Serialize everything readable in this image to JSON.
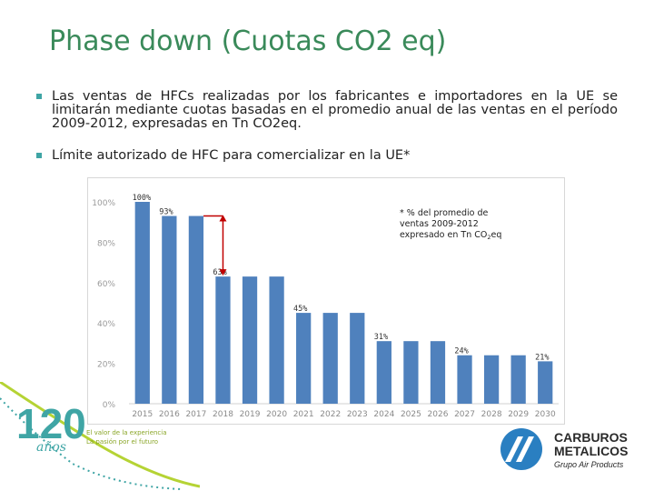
{
  "slide": {
    "title": "Phase down (Cuotas CO2 eq)",
    "bullets": [
      "Las ventas de HFCs realizadas por los fabricantes e importadores en la UE se limitarán mediante cuotas basadas en el promedio anual de las ventas en el período 2009-2012, expresadas en Tn CO2eq.",
      "Límite autorizado de HFC para comercializar en la UE*"
    ]
  },
  "chart_data": {
    "type": "bar",
    "categories": [
      "2015",
      "2016",
      "2017",
      "2018",
      "2019",
      "2020",
      "2021",
      "2022",
      "2023",
      "2024",
      "2025",
      "2026",
      "2027",
      "2028",
      "2029",
      "2030"
    ],
    "values": [
      100,
      93,
      93,
      63,
      63,
      63,
      45,
      45,
      45,
      31,
      31,
      31,
      24,
      24,
      24,
      21
    ],
    "ylim": [
      0,
      100
    ],
    "yticks": [
      "0%",
      "20%",
      "40%",
      "60%",
      "80%",
      "100%"
    ],
    "data_labels": [
      {
        "index": 0,
        "text": "100%"
      },
      {
        "index": 1,
        "text": "93%"
      },
      {
        "index": 3,
        "text": "63%"
      },
      {
        "index": 6,
        "text": "45%"
      },
      {
        "index": 9,
        "text": "31%"
      },
      {
        "index": 12,
        "text": "24%"
      },
      {
        "index": 15,
        "text": "21%"
      }
    ],
    "note_lines": [
      "* % del promedio de",
      "ventas 2009-2012",
      "expresado en Tn CO",
      "2",
      "eq"
    ],
    "bar_color": "#4f81bd",
    "arrow_color": "#c00000"
  },
  "branding": {
    "anniversary": "120",
    "anos": "años",
    "tagline": [
      "El valor de la experiencia",
      "La pasión por el futuro"
    ],
    "company": [
      "CARBUROS",
      "METALICOS"
    ],
    "group": "Grupo Air Products"
  }
}
